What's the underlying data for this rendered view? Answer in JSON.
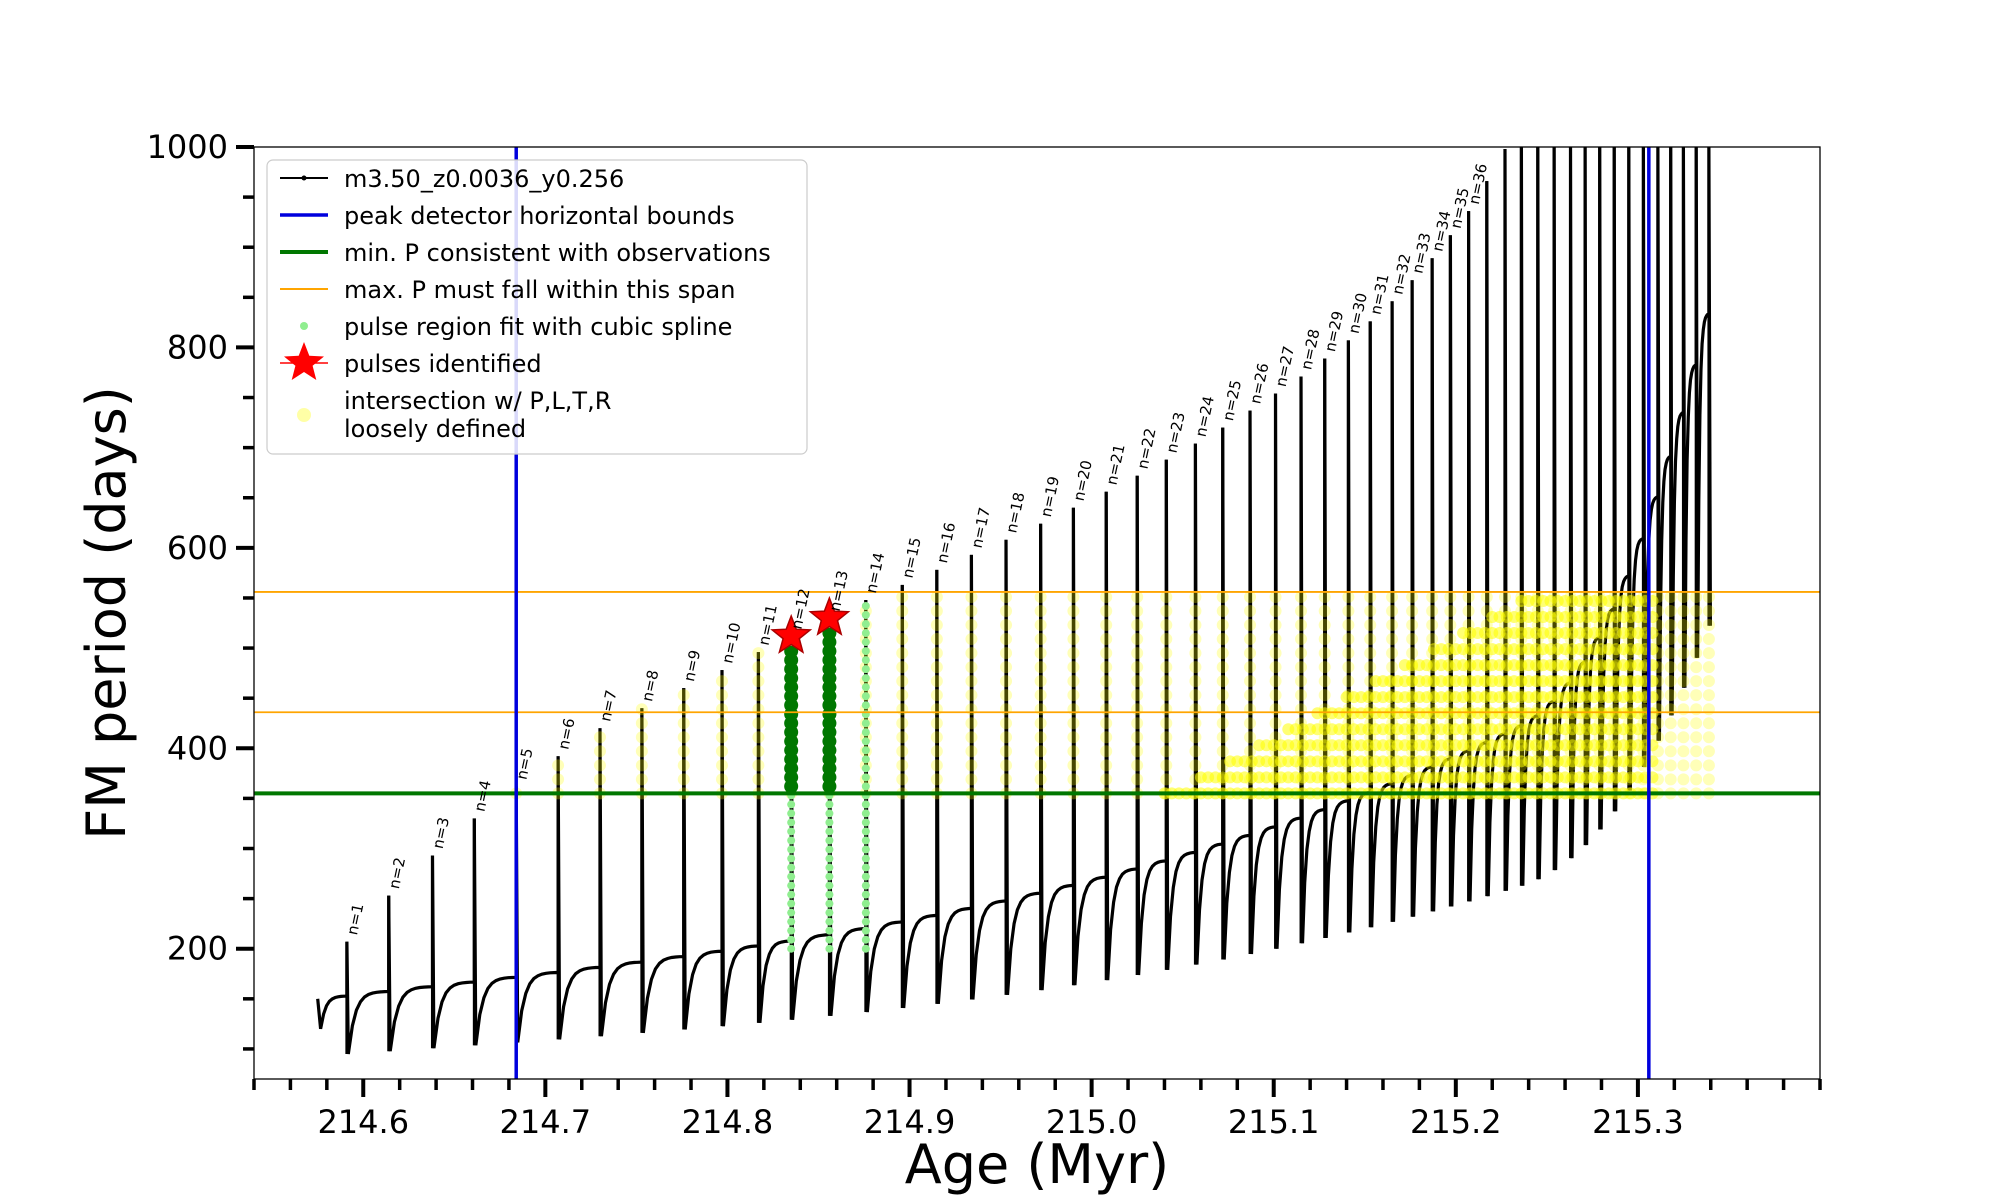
{
  "chart_data": {
    "type": "scatter",
    "xlabel": "Age (Myr)",
    "ylabel": "FM period (days)",
    "xlim": [
      214.54,
      215.4
    ],
    "ylim": [
      70,
      1000
    ],
    "xticks": [
      {
        "value": 214.6,
        "label": "214.6"
      },
      {
        "value": 214.7,
        "label": "214.7"
      },
      {
        "value": 214.8,
        "label": "214.8"
      },
      {
        "value": 214.9,
        "label": "214.9"
      },
      {
        "value": 215.0,
        "label": "215.0"
      },
      {
        "value": 215.1,
        "label": "215.1"
      },
      {
        "value": 215.2,
        "label": "215.2"
      },
      {
        "value": 215.3,
        "label": "215.3"
      }
    ],
    "yticks": [
      {
        "value": 200,
        "label": "200"
      },
      {
        "value": 400,
        "label": "400"
      },
      {
        "value": 600,
        "label": "600"
      },
      {
        "value": 800,
        "label": "800"
      },
      {
        "value": 1000,
        "label": "1000"
      }
    ],
    "colors": {
      "track": "#000000",
      "bounds": "#0000dd",
      "minP": "#007700",
      "maxP": "#ffa500",
      "spline": "#90ee90",
      "pulse": "#ff0000",
      "intersection": "#ffff00"
    },
    "legend": {
      "position": "upper-left",
      "entries": [
        {
          "key": "track",
          "label": "m3.50_z0.0036_y0.256"
        },
        {
          "key": "bounds",
          "label": "peak detector horizontal bounds"
        },
        {
          "key": "minP",
          "label": "min. P consistent with observations"
        },
        {
          "key": "maxP",
          "label": "max. P must fall within this span"
        },
        {
          "key": "spline",
          "label": "pulse region fit with cubic spline"
        },
        {
          "key": "pulse",
          "label": "pulses identified"
        },
        {
          "key": "intersection",
          "label": "intersection w/ P,L,T,R",
          "label2": "loosely defined"
        }
      ]
    },
    "vertical_lines": [
      214.684,
      215.306
    ],
    "min_P": 355,
    "max_P_span": [
      436,
      556
    ],
    "pulses_identified": [
      {
        "x": 214.835,
        "y": 512
      },
      {
        "x": 214.856,
        "y": 530
      }
    ],
    "pulse_peaks": [
      {
        "n": "n=1",
        "x": 214.591,
        "y": 207
      },
      {
        "n": "n=2",
        "x": 214.614,
        "y": 253
      },
      {
        "n": "n=3",
        "x": 214.638,
        "y": 293
      },
      {
        "n": "n=4",
        "x": 214.661,
        "y": 330
      },
      {
        "n": "n=5",
        "x": 214.684,
        "y": 362
      },
      {
        "n": "n=6",
        "x": 214.707,
        "y": 392
      },
      {
        "n": "n=7",
        "x": 214.73,
        "y": 420
      },
      {
        "n": "n=8",
        "x": 214.753,
        "y": 440
      },
      {
        "n": "n=9",
        "x": 214.776,
        "y": 460
      },
      {
        "n": "n=10",
        "x": 214.797,
        "y": 478
      },
      {
        "n": "n=11",
        "x": 214.817,
        "y": 496
      },
      {
        "n": "n=12",
        "x": 214.835,
        "y": 512
      },
      {
        "n": "n=13",
        "x": 214.856,
        "y": 530
      },
      {
        "n": "n=14",
        "x": 214.876,
        "y": 548
      },
      {
        "n": "n=15",
        "x": 214.896,
        "y": 563
      },
      {
        "n": "n=16",
        "x": 214.915,
        "y": 578
      },
      {
        "n": "n=17",
        "x": 214.934,
        "y": 593
      },
      {
        "n": "n=18",
        "x": 214.953,
        "y": 608
      },
      {
        "n": "n=19",
        "x": 214.972,
        "y": 624
      },
      {
        "n": "n=20",
        "x": 214.99,
        "y": 640
      },
      {
        "n": "n=21",
        "x": 215.008,
        "y": 656
      },
      {
        "n": "n=22",
        "x": 215.025,
        "y": 672
      },
      {
        "n": "n=23",
        "x": 215.041,
        "y": 688
      },
      {
        "n": "n=24",
        "x": 215.057,
        "y": 704
      },
      {
        "n": "n=25",
        "x": 215.072,
        "y": 720
      },
      {
        "n": "n=26",
        "x": 215.087,
        "y": 737
      },
      {
        "n": "n=27",
        "x": 215.101,
        "y": 754
      },
      {
        "n": "n=28",
        "x": 215.115,
        "y": 771
      },
      {
        "n": "n=29",
        "x": 215.128,
        "y": 789
      },
      {
        "n": "n=30",
        "x": 215.141,
        "y": 807
      },
      {
        "n": "n=31",
        "x": 215.153,
        "y": 826
      },
      {
        "n": "n=32",
        "x": 215.165,
        "y": 846
      },
      {
        "n": "n=33",
        "x": 215.176,
        "y": 867
      },
      {
        "n": "n=34",
        "x": 215.187,
        "y": 889
      },
      {
        "n": "n=35",
        "x": 215.197,
        "y": 912
      },
      {
        "n": "n=36",
        "x": 215.207,
        "y": 936
      }
    ],
    "extra_pulses_x": [
      215.217,
      215.227,
      215.236,
      215.245,
      215.254,
      215.263,
      215.271,
      215.279,
      215.287,
      215.295,
      215.303,
      215.311,
      215.318,
      215.325,
      215.332,
      215.339
    ],
    "spline_fit_pulses_x": [
      214.835,
      214.856,
      214.876
    ],
    "track_start": {
      "x": 214.575,
      "y": 150
    },
    "track_end": {
      "x": 215.34,
      "y": 1000
    }
  }
}
